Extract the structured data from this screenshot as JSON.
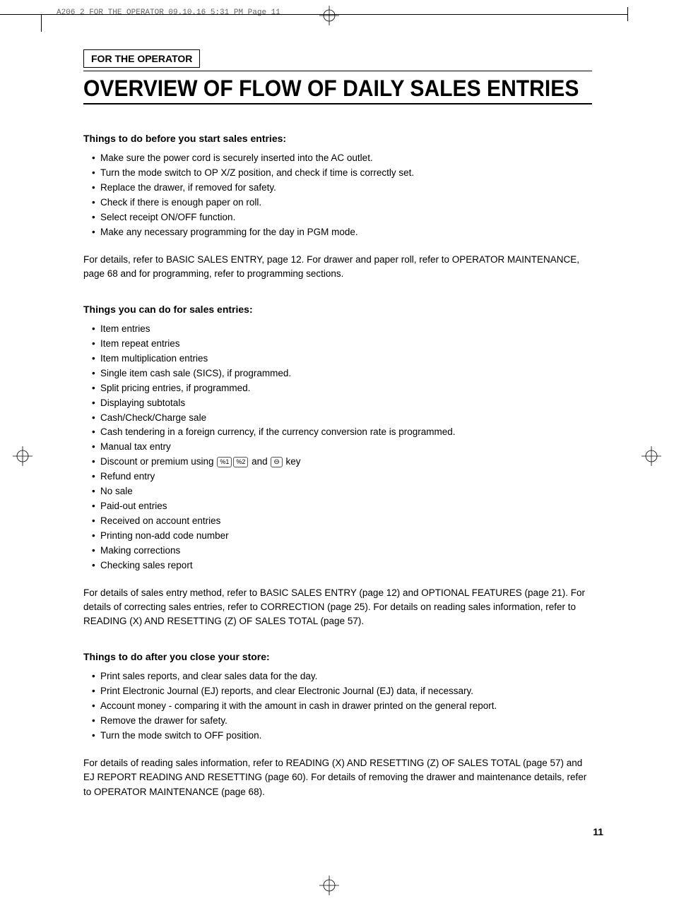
{
  "header_info": "A206_2 FOR THE OPERATOR  09.10.16 5:31 PM  Page 11",
  "section_label": "FOR THE OPERATOR",
  "main_title": "OVERVIEW OF FLOW OF DAILY SALES ENTRIES",
  "sections": [
    {
      "heading": "Things to do before you start sales entries:",
      "bullets": [
        "Make sure the power cord is securely inserted into the AC outlet.",
        "Turn the mode switch to OP X/Z position, and check if time is correctly set.",
        "Replace the drawer, if removed for safety.",
        "Check if there is enough paper on roll.",
        "Select receipt ON/OFF function.",
        "Make any necessary programming for the day in PGM mode."
      ],
      "para": "For details, refer to BASIC SALES ENTRY, page 12.  For drawer and paper roll, refer to OPERATOR MAINTENANCE, page 68 and for programming, refer to programming sections."
    },
    {
      "heading": "Things you can do for sales entries:",
      "bullets": [
        "Item entries",
        "Item repeat entries",
        "Item multiplication entries",
        "Single item cash sale (SICS), if programmed.",
        "Split pricing entries, if programmed.",
        "Displaying subtotals",
        "Cash/Check/Charge sale",
        "Cash tendering in a foreign currency, if the currency conversion rate is programmed.",
        "Manual tax entry",
        {
          "prefix": "Discount or premium using ",
          "keys": [
            "%1",
            "%2"
          ],
          "mid": " and ",
          "key3": "⊖",
          "suffix": " key"
        },
        "Refund entry",
        "No sale",
        "Paid-out entries",
        "Received on account entries",
        "Printing non-add code number",
        "Making corrections",
        "Checking sales report"
      ],
      "para": "For details of sales entry method, refer to BASIC SALES ENTRY (page 12) and OPTIONAL FEATURES (page 21).  For details of correcting sales entries, refer to CORRECTION (page 25).  For details on reading sales information, refer to READING (X) AND RESETTING (Z) OF SALES TOTAL (page 57)."
    },
    {
      "heading": "Things to do after you close your store:",
      "bullets": [
        "Print sales reports, and clear sales data for the day.",
        "Print Electronic Journal (EJ) reports, and clear Electronic Journal (EJ) data, if necessary.",
        "Account money - comparing it with the amount in cash in drawer printed on the general report.",
        "Remove the drawer for safety.",
        "Turn the mode switch to OFF position."
      ],
      "para": "For details of reading sales information, refer to READING (X) AND RESETTING (Z) OF SALES TOTAL (page 57) and EJ REPORT READING AND RESETTING (page 60).  For details of removing the drawer and maintenance details, refer to OPERATOR MAINTENANCE (page 68)."
    }
  ],
  "page_number": "11",
  "colors": {
    "text": "#000000",
    "bg": "#ffffff",
    "header_gray": "#666666"
  },
  "typography": {
    "body_fontsize": 13.5,
    "heading_fontsize": 14,
    "title_fontsize": 32
  }
}
